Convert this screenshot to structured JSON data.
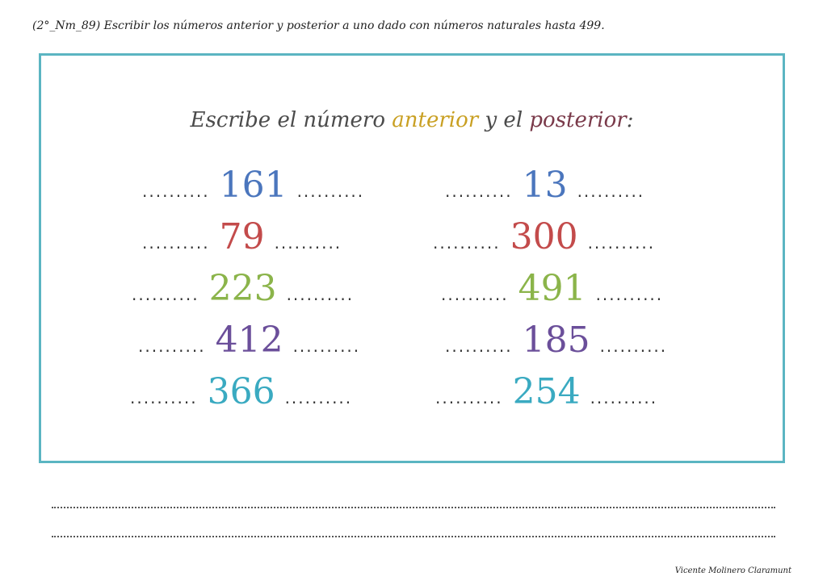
{
  "header": {
    "text": "(2°_Nm_89) Escribir los números anterior y posterior a uno dado con números naturales hasta 499."
  },
  "instruction": {
    "prefix": "Escribe el número ",
    "anterior": "anterior",
    "middle": " y el ",
    "posterior": "posterior",
    "suffix": ":"
  },
  "rows": [
    {
      "left": {
        "dots_before": "..........",
        "number": "161",
        "dots_after": "..........",
        "color": "#4b76bd"
      },
      "right": {
        "dots_before": "..........",
        "number": "13",
        "dots_after": "..........",
        "color": "#4b76bd"
      }
    },
    {
      "left": {
        "dots_before": "..........",
        "number": "79",
        "dots_after": "..........",
        "color": "#c34b4b"
      },
      "right": {
        "dots_before": "..........",
        "number": "300",
        "dots_after": "..........",
        "color": "#c34b4b"
      }
    },
    {
      "left": {
        "dots_before": "..........",
        "number": "223",
        "dots_after": "..........",
        "color": "#8bb44a"
      },
      "right": {
        "dots_before": "..........",
        "number": "491",
        "dots_after": "..........",
        "color": "#8bb44a"
      }
    },
    {
      "left": {
        "dots_before": "..........",
        "number": "412",
        "dots_after": "..........",
        "color": "#6b4f9a"
      },
      "right": {
        "dots_before": "..........",
        "number": "185",
        "dots_after": "..........",
        "color": "#6b4f9a"
      }
    },
    {
      "left": {
        "dots_before": "..........",
        "number": "366",
        "dots_after": "..........",
        "color": "#3aaac1"
      },
      "right": {
        "dots_before": "..........",
        "number": "254",
        "dots_after": "..........",
        "color": "#3aaac1"
      }
    }
  ],
  "signature": {
    "text": "Vicente Molinero Claramunt"
  }
}
